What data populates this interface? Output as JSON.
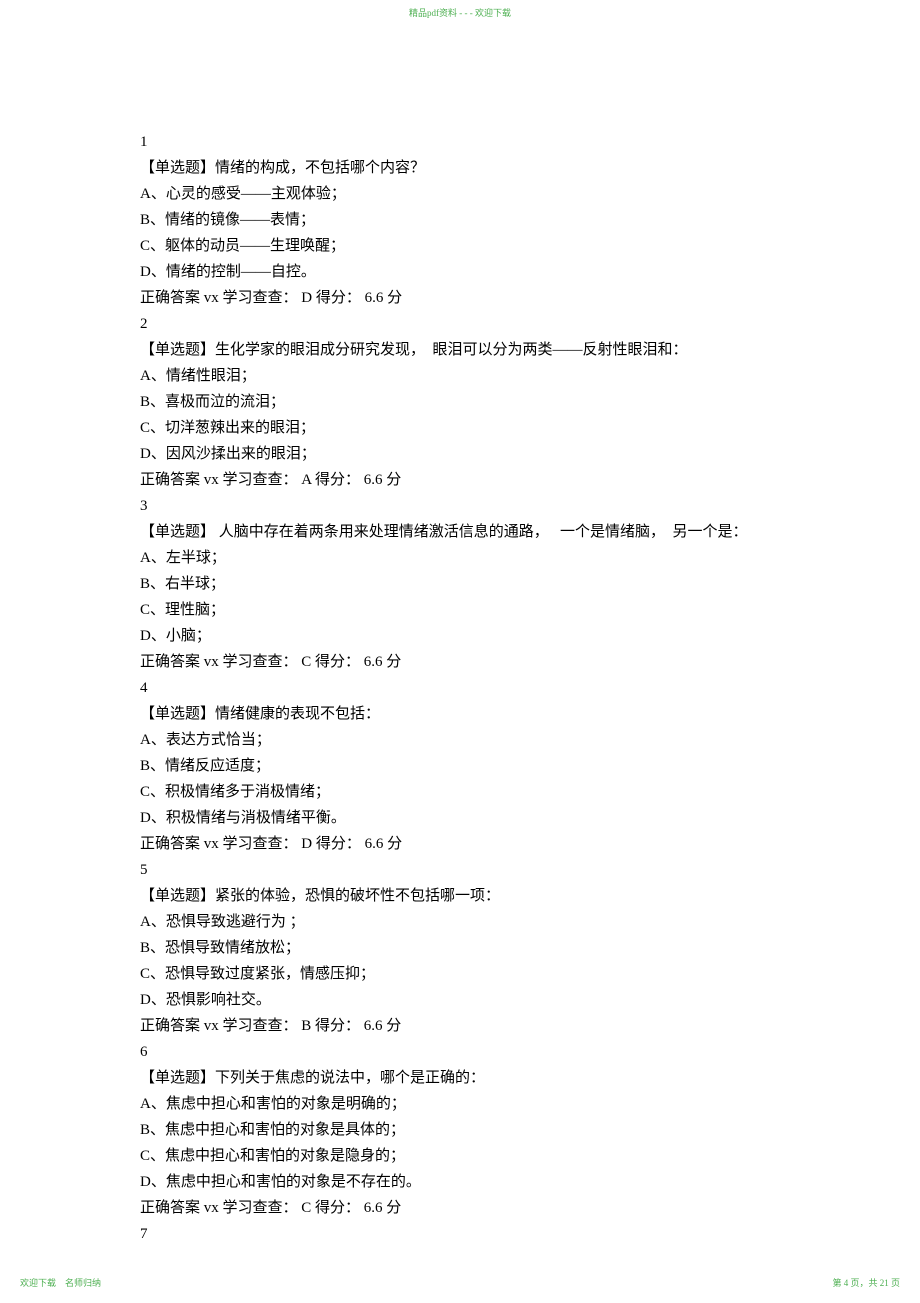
{
  "header": "精品pdf资料 - - - 欢迎下载",
  "footer_left": "欢迎下载　名师归纳",
  "footer_right": "第 4 页，共 21 页",
  "answer_prefix": "正确答案 vx 学习查查：",
  "score_word": "得分：",
  "score_value": "6.6",
  "score_unit": "分",
  "q1": {
    "num": "1",
    "prompt": "【单选题】情绪的构成，不包括哪个内容？",
    "a": "A、心灵的感受——主观体验；",
    "b": "B、情绪的镜像——表情；",
    "c": "C、躯体的动员——生理唤醒；",
    "d": "D、情绪的控制——自控。",
    "ans": "D"
  },
  "q2": {
    "num": "2",
    "prompt": "【单选题】生化学家的眼泪成分研究发现，　眼泪可以分为两类——反射性眼泪和：",
    "a": "A、情绪性眼泪；",
    "b": "B、喜极而泣的流泪；",
    "c": "C、切洋葱辣出来的眼泪；",
    "d": "D、因风沙揉出来的眼泪；",
    "ans": "A"
  },
  "q3": {
    "num": "3",
    "prompt": "【单选题】 人脑中存在着两条用来处理情绪激活信息的通路，　 一个是情绪脑，　另一个是：",
    "a": "A、左半球；",
    "b": "B、右半球；",
    "c": "C、理性脑；",
    "d": "D、小脑；",
    "ans": "C"
  },
  "q4": {
    "num": "4",
    "prompt": "【单选题】情绪健康的表现不包括：",
    "a": "A、表达方式恰当；",
    "b": "B、情绪反应适度；",
    "c": "C、积极情绪多于消极情绪；",
    "d": "D、积极情绪与消极情绪平衡。",
    "ans": "D"
  },
  "q5": {
    "num": "5",
    "prompt": "【单选题】紧张的体验，恐惧的破坏性不包括哪一项：",
    "a": "A、恐惧导致逃避行为 ；",
    "b": "B、恐惧导致情绪放松；",
    "c": "C、恐惧导致过度紧张，情感压抑；",
    "d": "D、恐惧影响社交。",
    "ans": "B"
  },
  "q6": {
    "num": "6",
    "prompt": "【单选题】下列关于焦虑的说法中，哪个是正确的：",
    "a": "A、焦虑中担心和害怕的对象是明确的；",
    "b": "B、焦虑中担心和害怕的对象是具体的；",
    "c": "C、焦虑中担心和害怕的对象是隐身的；",
    "d": "D、焦虑中担心和害怕的对象是不存在的。",
    "ans": "C"
  },
  "q7": {
    "num": "7"
  }
}
